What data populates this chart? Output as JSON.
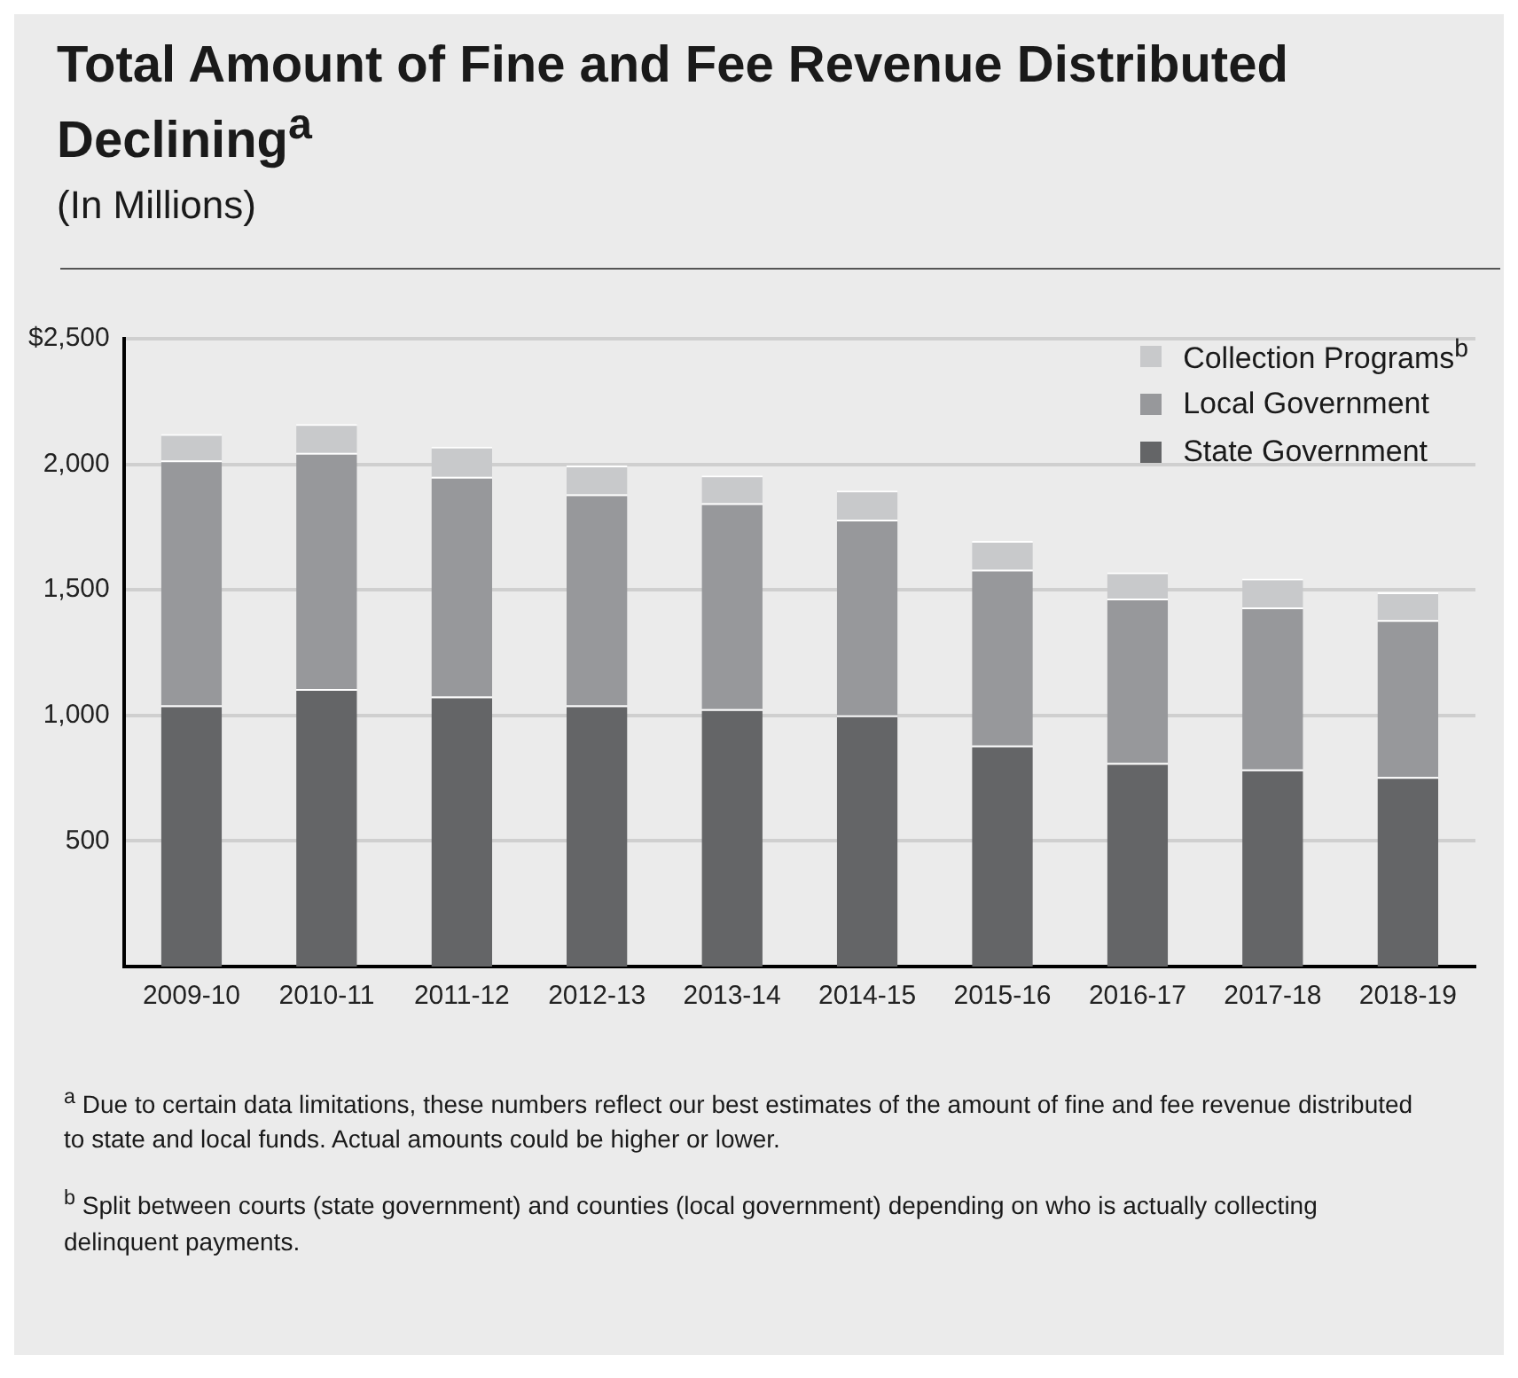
{
  "chart_data": {
    "type": "bar",
    "title": "Total Amount of Fine and Fee Revenue Distributed Declining$^{a}$",
    "subtitle": "(In Millions)",
    "categories": [
      "2009-10",
      "2010-11",
      "2011-12",
      "2012-13",
      "2013-14",
      "2014-15",
      "2015-16",
      "2016-17",
      "2017-18",
      "2018-19"
    ],
    "stacked": true,
    "series": [
      {
        "name": "State Government",
        "color": "#646567",
        "values": [
          1040,
          1105,
          1075,
          1040,
          1025,
          1000,
          880,
          810,
          785,
          755
        ]
      },
      {
        "name": "Local Government",
        "color": "#97989b",
        "values": [
          975,
          940,
          875,
          840,
          820,
          780,
          700,
          655,
          645,
          625
        ]
      },
      {
        "name": "Collection Programs$^{b}$",
        "color": "#c8c9cb",
        "values": [
          105,
          115,
          120,
          115,
          110,
          115,
          115,
          105,
          115,
          110
        ]
      }
    ],
    "ylim": [
      0,
      2500
    ],
    "yticks": [
      {
        "value": 500,
        "label": "500"
      },
      {
        "value": 1000,
        "label": "1,000"
      },
      {
        "value": 1500,
        "label": "1,500"
      },
      {
        "value": 2000,
        "label": "2,000"
      },
      {
        "value": 2500,
        "label": "$2,500"
      }
    ],
    "grid": "y",
    "legend": "top right",
    "annotations": [
      "$^{a}$ Due to certain data limitations, these numbers reflect our best estimates of the amount of fine and fee revenue distributed to state and local funds. Actual amounts could be higher or lower.",
      "$^{b}$ Split between courts (state government) and counties (local government) depending on who is actually collecting delinquent payments."
    ]
  }
}
